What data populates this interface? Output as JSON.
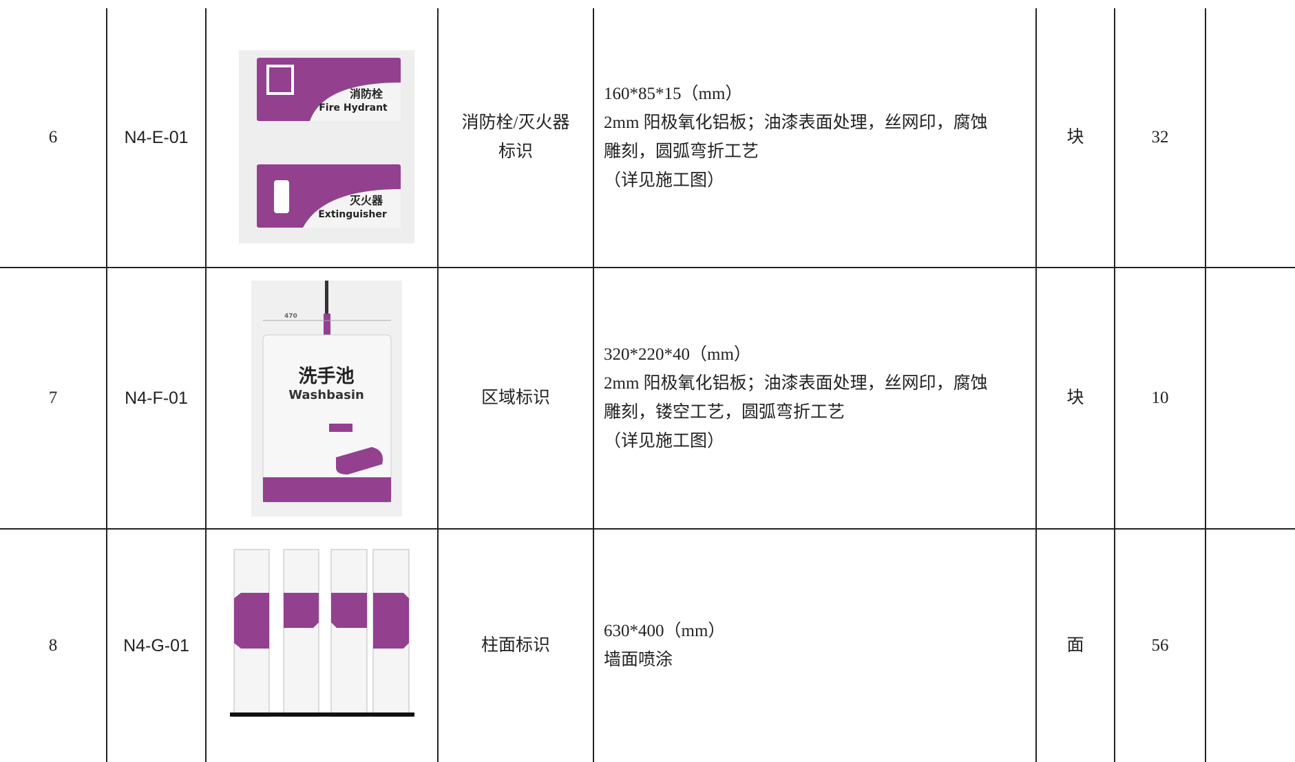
{
  "table": {
    "rows": [
      {
        "no": "6",
        "code": "N4-E-01",
        "image_text": [
          "消防栓",
          "Fire Hydrant",
          "灭火器",
          "Extinguisher"
        ],
        "name": [
          "消防栓/灭火器",
          "标识"
        ],
        "description": [
          "160*85*15（mm）",
          "2mm 阳极氧化铝板；油漆表面处理，丝网印，腐蚀",
          "雕刻，圆弧弯折工艺",
          "（详见施工图）"
        ],
        "unit": "块",
        "quantity": "32"
      },
      {
        "no": "7",
        "code": "N4-F-01",
        "image_text": [
          "470",
          "洗手池",
          "Washbasin"
        ],
        "name": [
          "区域标识"
        ],
        "description": [
          "320*220*40（mm）",
          "2mm 阳极氧化铝板；油漆表面处理，丝网印，腐蚀",
          "雕刻，镂空工艺，圆弧弯折工艺",
          "（详见施工图）"
        ],
        "unit": "块",
        "quantity": "10"
      },
      {
        "no": "8",
        "code": "N4-G-01",
        "image_text": [],
        "name": [
          "柱面标识"
        ],
        "description": [
          "630*400（mm）",
          "墙面喷涂"
        ],
        "unit": "面",
        "quantity": "56"
      }
    ]
  }
}
